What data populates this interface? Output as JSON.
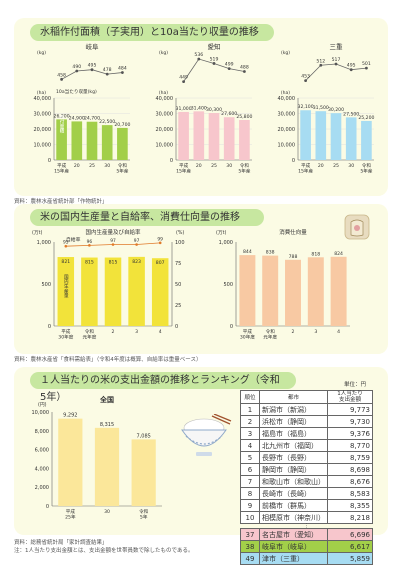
{
  "section1": {
    "title": "水稲作付面積（子実用）と10a当たり収量の推移",
    "source": "資料：農林水産省統計部「作物統計」",
    "colors": {
      "gifu": "#a2cf49",
      "aichi": "#f7c6cc",
      "mie": "#a7dcf2",
      "line": "#666666"
    },
    "charts": [
      {
        "name": "岐阜",
        "barlabel_vertical": "作付面積",
        "callout": "10a当たり収量(kg)",
        "kg_unit": "(kg)",
        "ha_unit": "(ha)",
        "yields": [
          458,
          490,
          495,
          478,
          484
        ],
        "areas": [
          26200,
          24900,
          24700,
          22500,
          20700
        ],
        "area_labels": [
          "26,200",
          "24,900",
          "24,700",
          "22,500",
          "20,700"
        ],
        "x": [
          "平成\n15年産",
          "20",
          "25",
          "30",
          "令和\n5年産"
        ],
        "ylim": [
          0,
          40000
        ],
        "yticks": [
          "0",
          "10,000",
          "20,000",
          "30,000",
          "40,000"
        ]
      },
      {
        "name": "愛知",
        "kg_unit": "(kg)",
        "ha_unit": "(ha)",
        "yields": [
          449,
          536,
          519,
          499,
          488
        ],
        "areas": [
          31000,
          31400,
          30300,
          27600,
          25800
        ],
        "area_labels": [
          "31,000",
          "31,400",
          "30,300",
          "27,600",
          "25,800"
        ],
        "x": [
          "平成\n15年産",
          "20",
          "25",
          "30",
          "令和\n5年産"
        ],
        "ylim": [
          0,
          40000
        ],
        "yticks": [
          "0",
          "10,000",
          "20,000",
          "30,000",
          "40,000"
        ]
      },
      {
        "name": "三重",
        "kg_unit": "(kg)",
        "ha_unit": "(ha)",
        "yields": [
          453,
          512,
          517,
          495,
          501
        ],
        "areas": [
          32100,
          31500,
          30200,
          27500,
          25200
        ],
        "area_labels": [
          "32,100",
          "31,500",
          "30,200",
          "27,500",
          "25,200"
        ],
        "x": [
          "平成\n15年産",
          "20",
          "25",
          "30",
          "令和\n5年産"
        ],
        "ylim": [
          0,
          40000
        ],
        "yticks": [
          "0",
          "10,000",
          "20,000",
          "30,000",
          "40,000"
        ]
      }
    ]
  },
  "section2": {
    "title": "米の国内生産量と自給率、消費仕向量の推移",
    "source": "資料：農林水産省「食料需給表」（令和4年度は概算、自給率は重量ベース）",
    "production": {
      "title": "国内生産量及び自給率",
      "rate_label": "自給率",
      "bar_vlabel": "国内生産量",
      "unit_left": "(万t)",
      "unit_right": "(%)",
      "values": [
        821,
        815,
        815,
        823,
        807
      ],
      "rates": [
        95,
        96,
        97,
        97,
        99
      ],
      "x": [
        "平成\n30年度",
        "令和\n元年度",
        "2",
        "3",
        "4"
      ],
      "ylim": [
        0,
        1000
      ],
      "yticks": [
        "0",
        "500",
        "1,000"
      ],
      "rticks": [
        "0",
        "25",
        "50",
        "75",
        "100"
      ],
      "bar_color": "#f2e33a"
    },
    "consumption": {
      "title": "消費仕向量",
      "unit": "(万t)",
      "values": [
        844,
        838,
        788,
        818,
        824
      ],
      "x": [
        "平成\n30年度",
        "令和\n元年度",
        "2",
        "3",
        "4"
      ],
      "ylim": [
        0,
        1000
      ],
      "yticks": [
        "0",
        "500",
        "1,000"
      ],
      "bar_color": "#f8c9a3"
    }
  },
  "section3": {
    "title": "１人当たりの米の支出金額の推移とランキング（令和5年）",
    "source_lines": [
      "資料：総務省統計局「家計調査結果」",
      "注：1人当たり支出金額とは、支出金額を世帯員数で除したものである。"
    ],
    "chart": {
      "title": "全国",
      "unit": "(円)",
      "values": [
        9292,
        8315,
        7085
      ],
      "value_labels": [
        "9,292",
        "8,315",
        "7,085"
      ],
      "x": [
        "平成\n25年",
        "30",
        "令和\n5年"
      ],
      "ylim": [
        0,
        10000
      ],
      "yticks": [
        "0",
        "2,000",
        "4,000",
        "6,000",
        "8,000",
        "10,000"
      ],
      "bar_color": "#fbe79a"
    },
    "ranking": {
      "unit": "単位：円",
      "headers": [
        "順位",
        "都市",
        "1人当たり\n支出金額"
      ],
      "rows": [
        {
          "rank": "1",
          "city": "新潟市（新潟）",
          "value": "9,773"
        },
        {
          "rank": "2",
          "city": "浜松市（静岡）",
          "value": "9,730"
        },
        {
          "rank": "3",
          "city": "福島市（福島）",
          "value": "9,376"
        },
        {
          "rank": "4",
          "city": "北九州市（福岡）",
          "value": "8,770"
        },
        {
          "rank": "5",
          "city": "長野市（長野）",
          "value": "8,759"
        },
        {
          "rank": "6",
          "city": "静岡市（静岡）",
          "value": "8,698"
        },
        {
          "rank": "7",
          "city": "和歌山市（和歌山）",
          "value": "8,676"
        },
        {
          "rank": "8",
          "city": "長崎市（長崎）",
          "value": "8,583"
        },
        {
          "rank": "9",
          "city": "前橋市（群馬）",
          "value": "8,355"
        },
        {
          "rank": "10",
          "city": "相模原市（神奈川）",
          "value": "8,218"
        }
      ],
      "highlight_rows": [
        {
          "rank": "37",
          "city": "名古屋市（愛知）",
          "value": "6,696",
          "color": "#f7c6cc"
        },
        {
          "rank": "38",
          "city": "岐阜市（岐阜）",
          "value": "6,617",
          "color": "#a2cf49"
        },
        {
          "rank": "49",
          "city": "津市（三重）",
          "value": "5,859",
          "color": "#a7dcf2"
        }
      ],
      "ellipsis": "⋮"
    }
  }
}
